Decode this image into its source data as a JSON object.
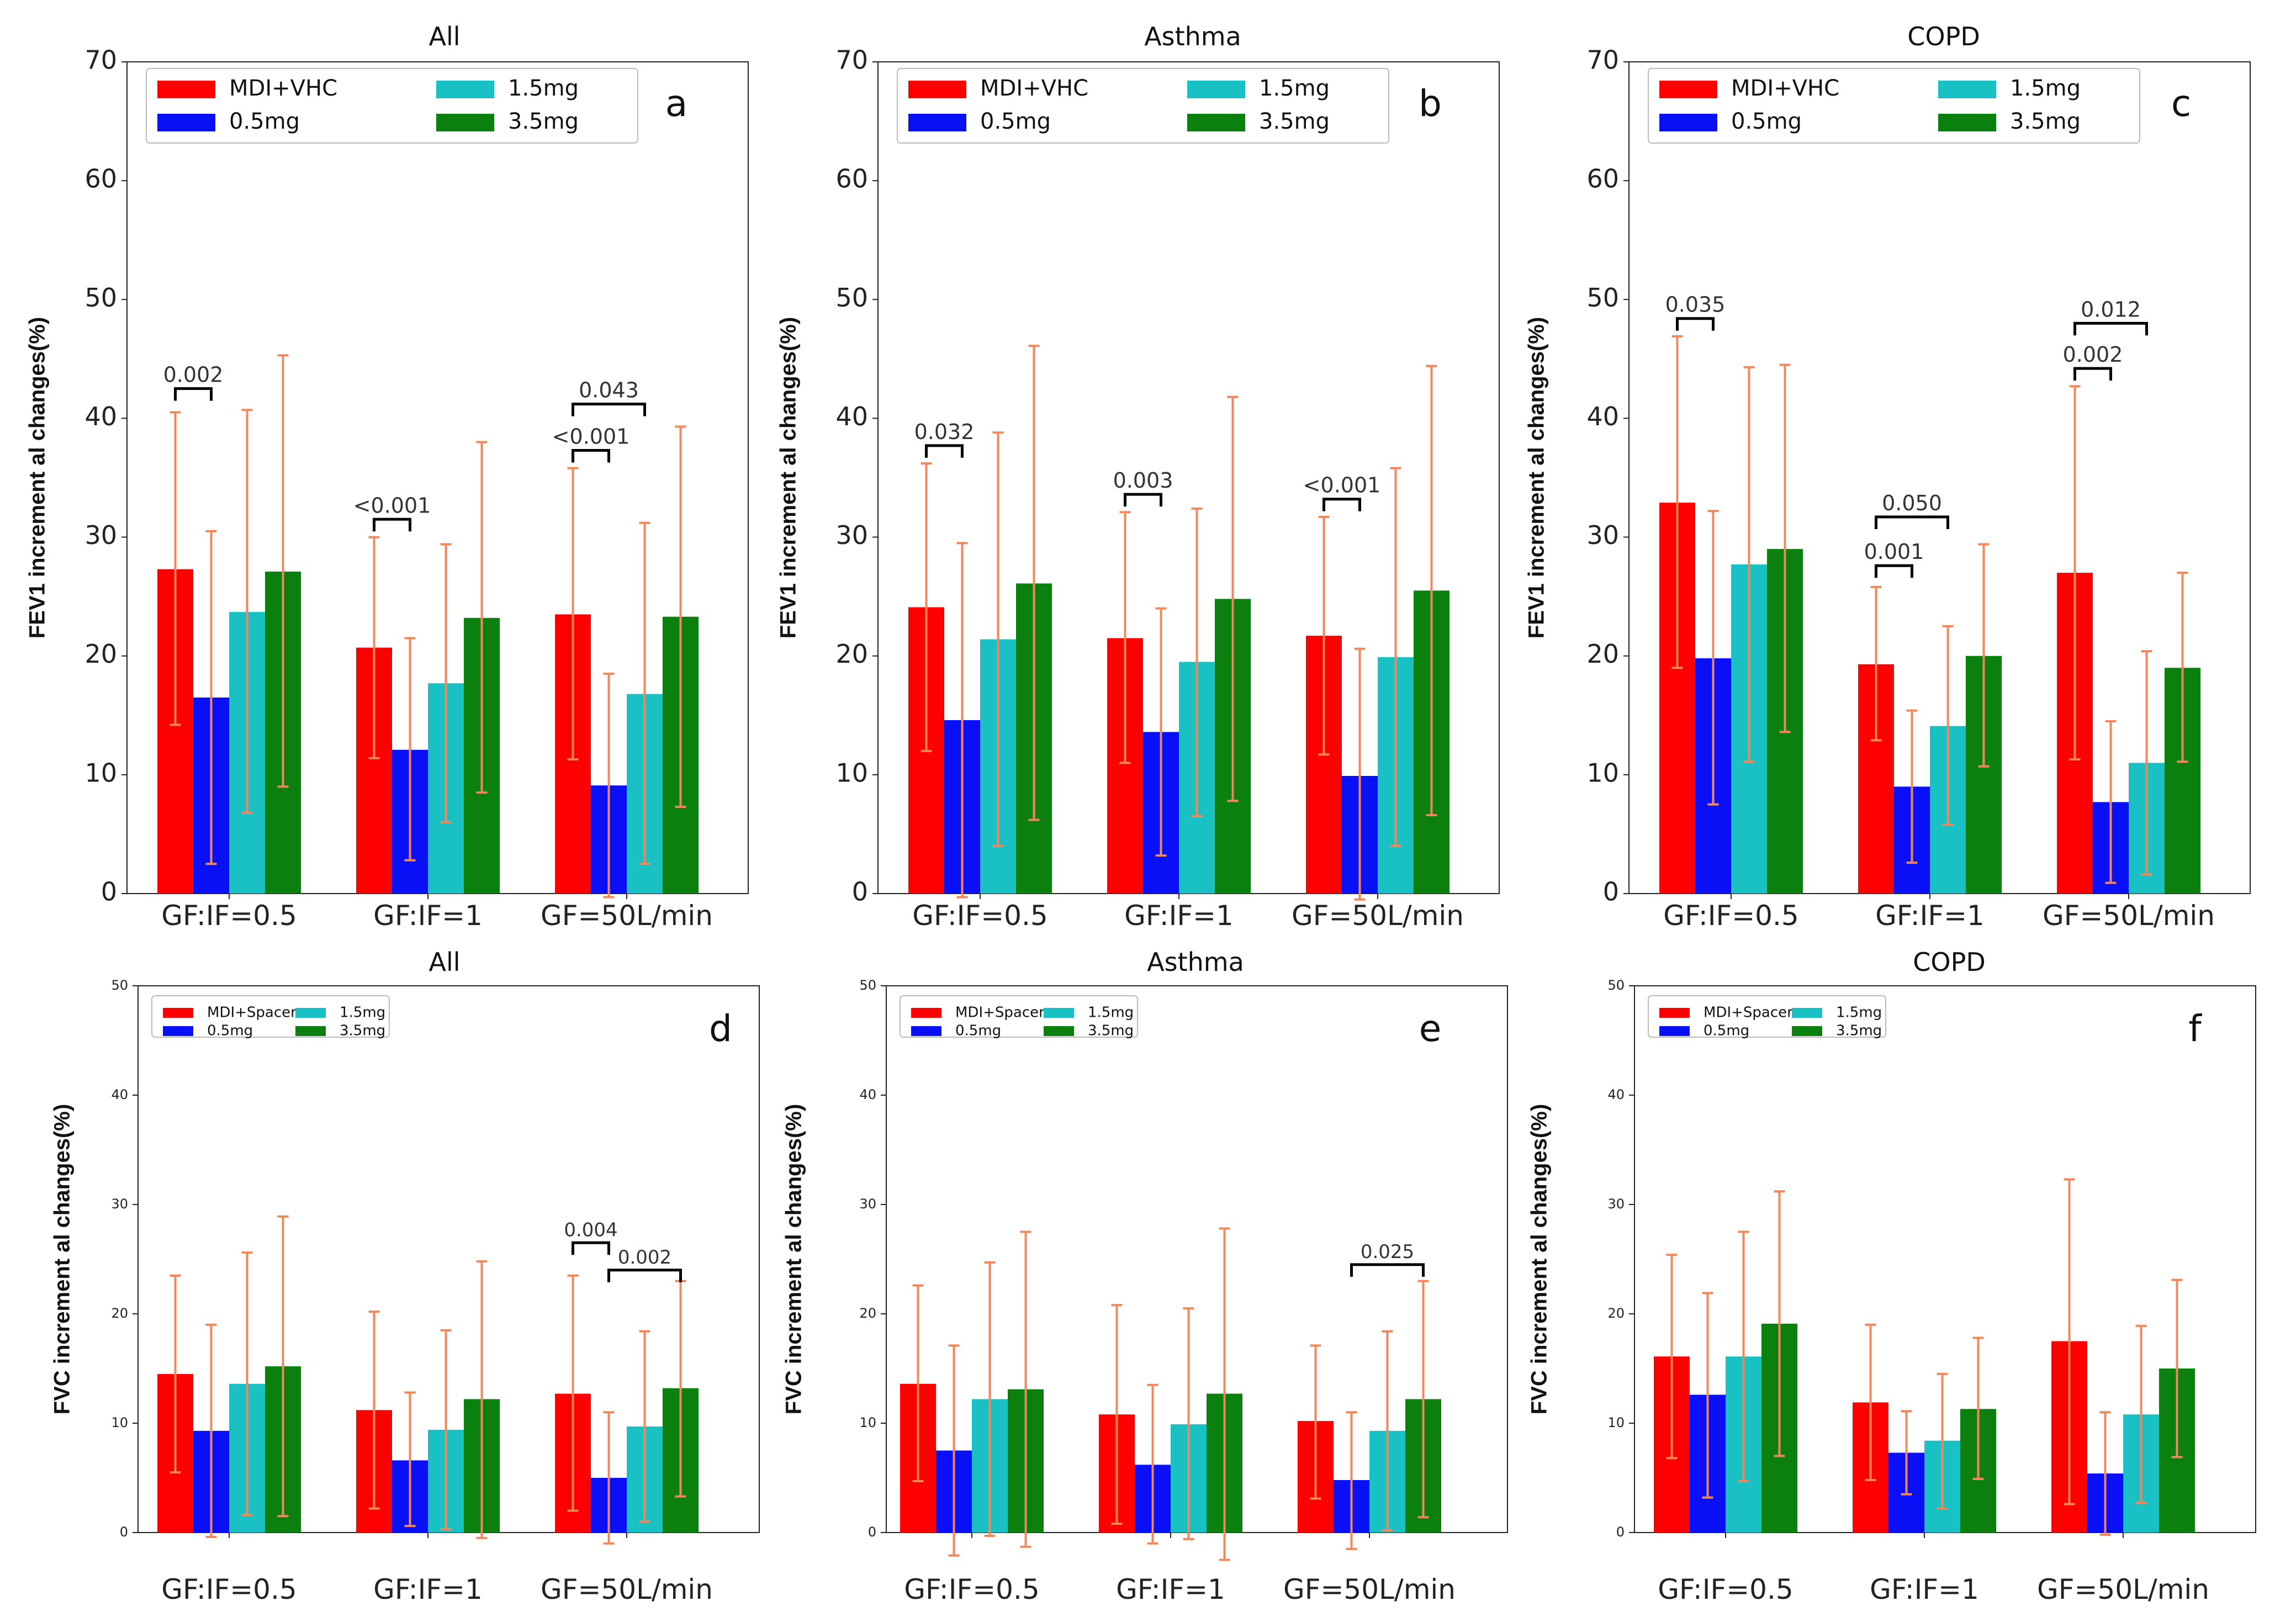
{
  "colors": {
    "MDI": "#ff0000",
    "0.5mg": "#0a10f5",
    "1.5mg": "#19c1c4",
    "3.5mg": "#0b800f",
    "error": "#f4875a"
  },
  "chart_data": [
    {
      "id": "a",
      "type": "bar",
      "title": "All",
      "letter": "a",
      "ylabel": "FEV1 increment al changes(%)",
      "ylim": [
        0,
        70
      ],
      "yticks": [
        "0",
        "10",
        "20",
        "30",
        "40",
        "50",
        "60",
        "70"
      ],
      "categories": [
        "GF:IF=0.5",
        "GF:IF=1",
        "GF=50L/min"
      ],
      "legend": [
        "MDI+VHC",
        "0.5mg",
        "1.5mg",
        "3.5mg"
      ],
      "series": [
        {
          "name": "MDI+VHC",
          "color_key": "MDI",
          "values": [
            27.3,
            20.7,
            23.5
          ],
          "err_low": [
            14.2,
            11.4,
            11.3
          ],
          "err_high": [
            40.5,
            30.0,
            35.8
          ]
        },
        {
          "name": "0.5mg",
          "color_key": "0.5mg",
          "values": [
            16.5,
            12.1,
            9.1
          ],
          "err_low": [
            2.5,
            2.8,
            -0.3
          ],
          "err_high": [
            30.5,
            21.5,
            18.5
          ]
        },
        {
          "name": "1.5mg",
          "color_key": "1.5mg",
          "values": [
            23.7,
            17.7,
            16.8
          ],
          "err_low": [
            6.8,
            6.0,
            2.5
          ],
          "err_high": [
            40.7,
            29.4,
            31.2
          ]
        },
        {
          "name": "3.5mg",
          "color_key": "3.5mg",
          "values": [
            27.1,
            23.2,
            23.3
          ],
          "err_low": [
            9.0,
            8.5,
            7.3
          ],
          "err_high": [
            45.3,
            38.0,
            39.3
          ]
        }
      ],
      "annotations": [
        {
          "text": "0.002",
          "group": 0,
          "from": 0,
          "to": 1,
          "y": 42.5,
          "size": 38
        },
        {
          "text": "<0.001",
          "group": 1,
          "from": 0,
          "to": 1,
          "y": 31.5,
          "size": 38
        },
        {
          "text": "<0.001",
          "group": 2,
          "from": 0,
          "to": 1,
          "y": 37.3,
          "size": 38
        },
        {
          "text": "0.043",
          "group": 2,
          "from": 0,
          "to": 2,
          "y": 41.2,
          "size": 38
        }
      ]
    },
    {
      "id": "b",
      "type": "bar",
      "title": "Asthma",
      "letter": "b",
      "ylabel": "FEV1 increment al changes(%)",
      "ylim": [
        0,
        70
      ],
      "yticks": [
        "0",
        "10",
        "20",
        "30",
        "40",
        "50",
        "60",
        "70"
      ],
      "categories": [
        "GF:IF=0.5",
        "GF:IF=1",
        "GF=50L/min"
      ],
      "legend": [
        "MDI+VHC",
        "0.5mg",
        "1.5mg",
        "3.5mg"
      ],
      "series": [
        {
          "name": "MDI+VHC",
          "color_key": "MDI",
          "values": [
            24.1,
            21.5,
            21.7
          ],
          "err_low": [
            12.0,
            11.0,
            11.7
          ],
          "err_high": [
            36.2,
            32.1,
            31.7
          ]
        },
        {
          "name": "0.5mg",
          "color_key": "0.5mg",
          "values": [
            14.6,
            13.6,
            9.9
          ],
          "err_low": [
            -0.3,
            3.2,
            -0.5
          ],
          "err_high": [
            29.5,
            24.0,
            20.6
          ]
        },
        {
          "name": "1.5mg",
          "color_key": "1.5mg",
          "values": [
            21.4,
            19.5,
            19.9
          ],
          "err_low": [
            4.0,
            6.5,
            4.0
          ],
          "err_high": [
            38.8,
            32.4,
            35.8
          ]
        },
        {
          "name": "3.5mg",
          "color_key": "3.5mg",
          "values": [
            26.1,
            24.8,
            25.5
          ],
          "err_low": [
            6.2,
            7.8,
            6.6
          ],
          "err_high": [
            46.1,
            41.8,
            44.4
          ]
        }
      ],
      "annotations": [
        {
          "text": "0.032",
          "group": 0,
          "from": 0,
          "to": 1,
          "y": 37.7,
          "size": 38
        },
        {
          "text": "0.003",
          "group": 1,
          "from": 0,
          "to": 1,
          "y": 33.6,
          "size": 38
        },
        {
          "text": "<0.001",
          "group": 2,
          "from": 0,
          "to": 1,
          "y": 33.2,
          "size": 38
        }
      ]
    },
    {
      "id": "c",
      "type": "bar",
      "title": "COPD",
      "letter": "c",
      "ylabel": "FEV1 increment al changes(%)",
      "ylim": [
        0,
        70
      ],
      "yticks": [
        "0",
        "10",
        "20",
        "30",
        "40",
        "50",
        "60",
        "70"
      ],
      "categories": [
        "GF:IF=0.5",
        "GF:IF=1",
        "GF=50L/min"
      ],
      "legend": [
        "MDI+VHC",
        "0.5mg",
        "1.5mg",
        "3.5mg"
      ],
      "series": [
        {
          "name": "MDI+VHC",
          "color_key": "MDI",
          "values": [
            32.9,
            19.3,
            27.0
          ],
          "err_low": [
            19.0,
            12.9,
            11.3
          ],
          "err_high": [
            46.9,
            25.8,
            42.7
          ]
        },
        {
          "name": "0.5mg",
          "color_key": "0.5mg",
          "values": [
            19.8,
            9.0,
            7.7
          ],
          "err_low": [
            7.5,
            2.6,
            0.9
          ],
          "err_high": [
            32.2,
            15.4,
            14.5
          ]
        },
        {
          "name": "1.5mg",
          "color_key": "1.5mg",
          "values": [
            27.7,
            14.1,
            11.0
          ],
          "err_low": [
            11.1,
            5.8,
            1.6
          ],
          "err_high": [
            44.3,
            22.5,
            20.4
          ]
        },
        {
          "name": "3.5mg",
          "color_key": "3.5mg",
          "values": [
            29.0,
            20.0,
            19.0
          ],
          "err_low": [
            13.6,
            10.7,
            11.1
          ],
          "err_high": [
            44.5,
            29.4,
            27.0
          ]
        }
      ],
      "annotations": [
        {
          "text": "0.035",
          "group": 0,
          "from": 0,
          "to": 1,
          "y": 48.4,
          "size": 38
        },
        {
          "text": "0.001",
          "group": 1,
          "from": 0,
          "to": 1,
          "y": 27.6,
          "size": 38
        },
        {
          "text": "0.050",
          "group": 1,
          "from": 0,
          "to": 2,
          "y": 31.7,
          "size": 38
        },
        {
          "text": "0.002",
          "group": 2,
          "from": 0,
          "to": 1,
          "y": 44.2,
          "size": 38
        },
        {
          "text": "0.012",
          "group": 2,
          "from": 0,
          "to": 2,
          "y": 48.0,
          "size": 38
        }
      ]
    },
    {
      "id": "d",
      "type": "bar",
      "title": "All",
      "letter": "d",
      "ylabel": "FVC increment al changes(%)",
      "ylim": [
        0,
        50
      ],
      "yticks": [
        "0",
        "10",
        "20",
        "30",
        "40",
        "50"
      ],
      "categories": [
        "GF:IF=0.5",
        "GF:IF=1",
        "GF=50L/min"
      ],
      "legend": [
        "MDI+Spacer",
        "0.5mg",
        "1.5mg",
        "3.5mg"
      ],
      "series": [
        {
          "name": "MDI+Spacer",
          "color_key": "MDI",
          "values": [
            14.5,
            11.2,
            12.7
          ],
          "err_low": [
            5.5,
            2.2,
            2.0
          ],
          "err_high": [
            23.5,
            20.2,
            23.5
          ]
        },
        {
          "name": "0.5mg",
          "color_key": "0.5mg",
          "values": [
            9.3,
            6.6,
            5.0
          ],
          "err_low": [
            -0.4,
            0.6,
            -1.0
          ],
          "err_high": [
            19.0,
            12.8,
            11.0
          ]
        },
        {
          "name": "1.5mg",
          "color_key": "1.5mg",
          "values": [
            13.6,
            9.4,
            9.7
          ],
          "err_low": [
            1.6,
            0.3,
            1.0
          ],
          "err_high": [
            25.6,
            18.5,
            18.4
          ]
        },
        {
          "name": "3.5mg",
          "color_key": "3.5mg",
          "values": [
            15.2,
            12.2,
            13.2
          ],
          "err_low": [
            1.5,
            -0.5,
            3.3
          ],
          "err_high": [
            28.9,
            24.8,
            23.0
          ]
        }
      ],
      "annotations": [
        {
          "text": "0.004",
          "group": 2,
          "from": 0,
          "to": 1,
          "y": 26.5,
          "size": 34
        },
        {
          "text": "0.002",
          "group": 2,
          "from": 1,
          "to": 3,
          "y": 24.0,
          "size": 34
        }
      ]
    },
    {
      "id": "e",
      "type": "bar",
      "title": "Asthma",
      "letter": "e",
      "ylabel": "FVC increment al changes(%)",
      "ylim": [
        0,
        50
      ],
      "yticks": [
        "0",
        "10",
        "20",
        "30",
        "40",
        "50"
      ],
      "categories": [
        "GF:IF=0.5",
        "GF:IF=1",
        "GF=50L/min"
      ],
      "legend": [
        "MDI+Spacer",
        "0.5mg",
        "1.5mg",
        "3.5mg"
      ],
      "series": [
        {
          "name": "MDI+Spacer",
          "color_key": "MDI",
          "values": [
            13.6,
            10.8,
            10.2
          ],
          "err_low": [
            4.7,
            0.8,
            3.1
          ],
          "err_high": [
            22.6,
            20.8,
            17.1
          ]
        },
        {
          "name": "0.5mg",
          "color_key": "0.5mg",
          "values": [
            7.5,
            6.2,
            4.8
          ],
          "err_low": [
            -2.1,
            -1.0,
            -1.5
          ],
          "err_high": [
            17.1,
            13.5,
            11.0
          ]
        },
        {
          "name": "1.5mg",
          "color_key": "1.5mg",
          "values": [
            12.2,
            9.9,
            9.3
          ],
          "err_low": [
            -0.3,
            -0.6,
            0.2
          ],
          "err_high": [
            24.7,
            20.5,
            18.4
          ]
        },
        {
          "name": "3.5mg",
          "color_key": "3.5mg",
          "values": [
            13.1,
            12.7,
            12.2
          ],
          "err_low": [
            -1.3,
            -2.5,
            1.4
          ],
          "err_high": [
            27.5,
            27.8,
            23.0
          ]
        }
      ],
      "annotations": [
        {
          "text": "0.025",
          "group": 2,
          "from": 1,
          "to": 3,
          "y": 24.5,
          "size": 34
        }
      ]
    },
    {
      "id": "f",
      "type": "bar",
      "title": "COPD",
      "letter": "f",
      "ylabel": "FVC increment al changes(%)",
      "ylim": [
        0,
        50
      ],
      "yticks": [
        "0",
        "10",
        "20",
        "30",
        "40",
        "50"
      ],
      "categories": [
        "GF:IF=0.5",
        "GF:IF=1",
        "GF=50L/min"
      ],
      "legend": [
        "MDI+Spacer",
        "0.5mg",
        "1.5mg",
        "3.5mg"
      ],
      "series": [
        {
          "name": "MDI+Spacer",
          "color_key": "MDI",
          "values": [
            16.1,
            11.9,
            17.5
          ],
          "err_low": [
            6.8,
            4.8,
            2.6
          ],
          "err_high": [
            25.4,
            19.0,
            32.3
          ]
        },
        {
          "name": "0.5mg",
          "color_key": "0.5mg",
          "values": [
            12.6,
            7.3,
            5.4
          ],
          "err_low": [
            3.2,
            3.5,
            -0.2
          ],
          "err_high": [
            21.9,
            11.1,
            11.0
          ]
        },
        {
          "name": "1.5mg",
          "color_key": "1.5mg",
          "values": [
            16.1,
            8.4,
            10.8
          ],
          "err_low": [
            4.7,
            2.2,
            2.7
          ],
          "err_high": [
            27.5,
            14.5,
            18.9
          ]
        },
        {
          "name": "3.5mg",
          "color_key": "3.5mg",
          "values": [
            19.1,
            11.3,
            15.0
          ],
          "err_low": [
            7.0,
            4.9,
            6.9
          ],
          "err_high": [
            31.2,
            17.8,
            23.1
          ]
        }
      ],
      "annotations": []
    }
  ]
}
